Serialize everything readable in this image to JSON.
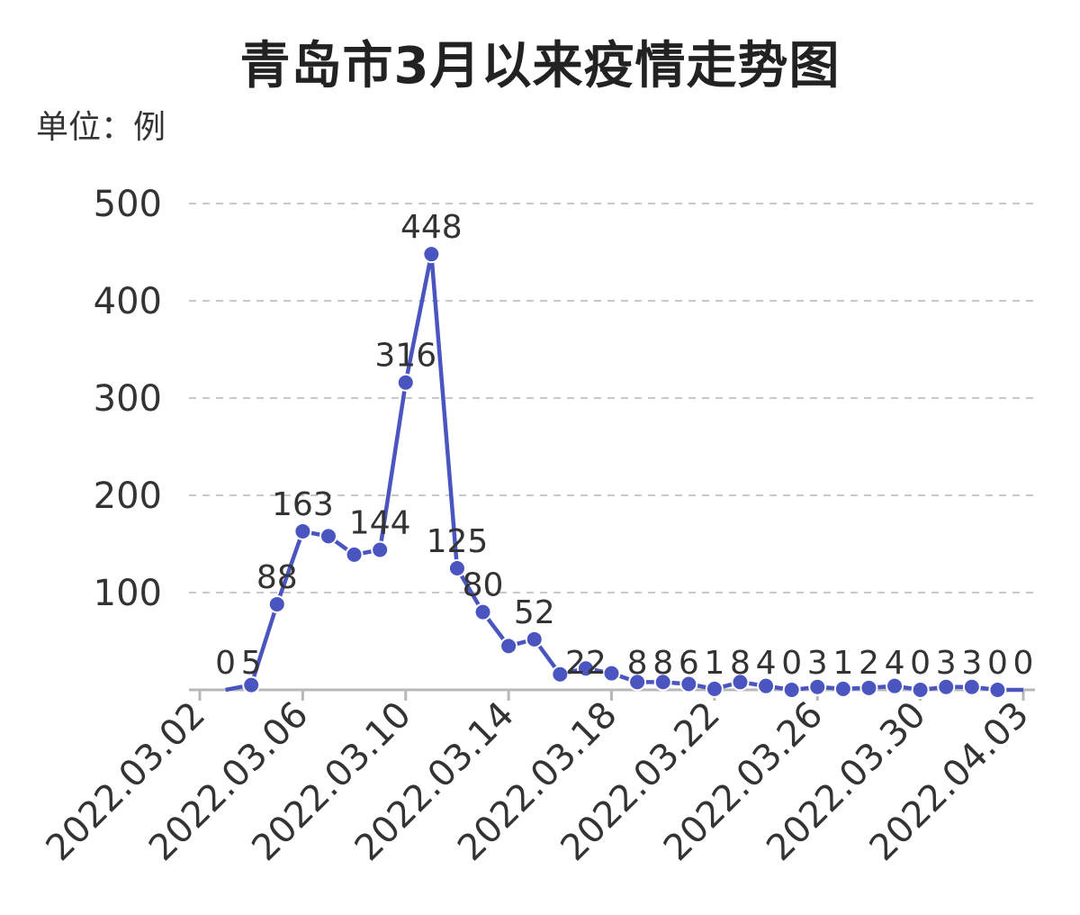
{
  "chart_data": {
    "type": "line",
    "title": "青岛市3月以来疫情走势图",
    "unit_label": "单位：例",
    "xlabel": "",
    "ylabel": "",
    "ylim": [
      0,
      500
    ],
    "yticks": [
      100,
      200,
      300,
      400,
      500
    ],
    "xlim": [
      "2022.03.02",
      "2022.04.03"
    ],
    "xtick_labels": [
      "2022.03.02",
      "2022.03.06",
      "2022.03.10",
      "2022.03.14",
      "2022.03.18",
      "2022.03.22",
      "2022.03.26",
      "2022.03.30",
      "2022.04.03"
    ],
    "grid": "horizontal dashed",
    "line_color": "#4a55c0",
    "marker_color": "#4a55c0",
    "series": [
      {
        "x": [
          "2022.03.03",
          "2022.03.04",
          "2022.03.05",
          "2022.03.06",
          "2022.03.07",
          "2022.03.08",
          "2022.03.09",
          "2022.03.10",
          "2022.03.11",
          "2022.03.12",
          "2022.03.13",
          "2022.03.14",
          "2022.03.15",
          "2022.03.16",
          "2022.03.17",
          "2022.03.18",
          "2022.03.19",
          "2022.03.20",
          "2022.03.21",
          "2022.03.22",
          "2022.03.23",
          "2022.03.24",
          "2022.03.25",
          "2022.03.26",
          "2022.03.27",
          "2022.03.28",
          "2022.03.29",
          "2022.03.30",
          "2022.03.31",
          "2022.04.01",
          "2022.04.02",
          "2022.04.03"
        ],
        "values": [
          0,
          5,
          88,
          163,
          158,
          139,
          144,
          316,
          448,
          125,
          80,
          45,
          52,
          16,
          22,
          17,
          8,
          8,
          6,
          1,
          8,
          4,
          0,
          3,
          1,
          2,
          4,
          0,
          3,
          3,
          0,
          0
        ],
        "labels": [
          "0",
          "5",
          "88",
          "163",
          "",
          "",
          "144",
          "316",
          "448",
          "125",
          "80",
          "",
          "52",
          "",
          "22",
          "",
          "8",
          "8",
          "6",
          "1",
          "8",
          "4",
          "0",
          "3",
          "1",
          "2",
          "4",
          "0",
          "3",
          "3",
          "0",
          "0"
        ]
      }
    ]
  }
}
